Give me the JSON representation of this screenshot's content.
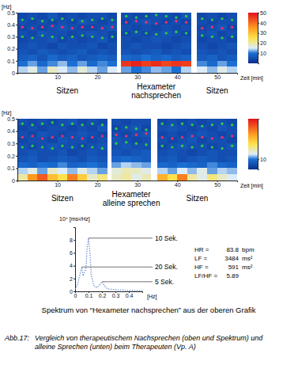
{
  "chart_data": [
    {
      "type": "heatmap",
      "y_label": "[Hz]",
      "x_label": "Zeit [min]",
      "xlim": [
        0,
        55
      ],
      "xticks": [
        10,
        20,
        30,
        40,
        50
      ],
      "ylim": [
        0,
        0.5
      ],
      "yticks": [
        0,
        0.1,
        0.2,
        0.3,
        0.4,
        0.5
      ],
      "x_edges": [
        0,
        2.5,
        5,
        7.5,
        10,
        12.5,
        15,
        17.5,
        20,
        22.5,
        25,
        26,
        28.5,
        31,
        33.5,
        36,
        38.5,
        41,
        43.5,
        45,
        47.5,
        50,
        52.5,
        55
      ],
      "y_edges": [
        0,
        0.05,
        0.1,
        0.15,
        0.2,
        0.25,
        0.3,
        0.35,
        0.4,
        0.45,
        0.5
      ],
      "z": [
        [
          14,
          16,
          12,
          18,
          15,
          13,
          17,
          14,
          12,
          15,
          null,
          12,
          10,
          11,
          13,
          12,
          10,
          14,
          null,
          15,
          13,
          16,
          14
        ],
        [
          10,
          12,
          9,
          11,
          13,
          10,
          12,
          9,
          11,
          10,
          null,
          46,
          48,
          45,
          47,
          44,
          46,
          45,
          null,
          11,
          9,
          12,
          10
        ],
        [
          7,
          8,
          6,
          9,
          7,
          8,
          6,
          7,
          8,
          7,
          null,
          9,
          8,
          10,
          8,
          9,
          7,
          8,
          null,
          7,
          8,
          6,
          7
        ],
        [
          6,
          5,
          7,
          6,
          5,
          6,
          7,
          5,
          6,
          5,
          null,
          6,
          5,
          6,
          7,
          5,
          6,
          5,
          null,
          6,
          5,
          6,
          5
        ],
        [
          5,
          6,
          5,
          4,
          6,
          5,
          5,
          6,
          4,
          5,
          null,
          5,
          6,
          5,
          5,
          4,
          5,
          6,
          null,
          5,
          4,
          5,
          6
        ],
        [
          4,
          5,
          5,
          6,
          4,
          5,
          4,
          5,
          6,
          4,
          null,
          5,
          4,
          5,
          6,
          5,
          4,
          5,
          null,
          4,
          5,
          5,
          4
        ],
        [
          5,
          4,
          6,
          5,
          5,
          4,
          5,
          6,
          5,
          4,
          null,
          4,
          5,
          4,
          5,
          6,
          5,
          4,
          null,
          5,
          6,
          4,
          5
        ],
        [
          4,
          5,
          4,
          5,
          6,
          5,
          4,
          4,
          5,
          6,
          null,
          5,
          4,
          5,
          4,
          5,
          4,
          5,
          null,
          4,
          5,
          6,
          4
        ],
        [
          5,
          4,
          5,
          4,
          5,
          4,
          6,
          5,
          4,
          5,
          null,
          4,
          5,
          6,
          5,
          4,
          5,
          4,
          null,
          5,
          4,
          5,
          5
        ],
        [
          4,
          5,
          4,
          6,
          4,
          5,
          4,
          5,
          5,
          4,
          null,
          5,
          4,
          4,
          5,
          5,
          4,
          6,
          null,
          4,
          5,
          4,
          5
        ]
      ],
      "colorbar": {
        "range": [
          0,
          50
        ],
        "ticks": [
          10,
          20,
          30,
          40,
          50
        ]
      },
      "dots": [
        {
          "color": "#2ecc40",
          "x": [
            1.25,
            3.75,
            6.25,
            8.75,
            11.25,
            13.75,
            16.25,
            18.75,
            21.25,
            23.75,
            27.25,
            29.75,
            32.25,
            34.75,
            37.25,
            39.75,
            42.25,
            46.25,
            48.75,
            51.25,
            53.75
          ],
          "y": [
            0.44,
            0.45,
            0.43,
            0.44,
            0.45,
            0.44,
            0.43,
            0.44,
            0.45,
            0.44,
            0.47,
            0.46,
            0.47,
            0.48,
            0.47,
            0.46,
            0.47,
            0.45,
            0.44,
            0.45,
            0.44
          ]
        },
        {
          "color": "#f0306a",
          "x": [
            1.25,
            3.75,
            6.25,
            8.75,
            11.25,
            13.75,
            16.25,
            18.75,
            21.25,
            23.75,
            27.25,
            29.75,
            32.25,
            34.75,
            37.25,
            39.75,
            42.25,
            46.25,
            48.75,
            51.25,
            53.75
          ],
          "y": [
            0.38,
            0.37,
            0.38,
            0.39,
            0.38,
            0.37,
            0.38,
            0.38,
            0.37,
            0.38,
            0.42,
            0.43,
            0.42,
            0.41,
            0.42,
            0.43,
            0.42,
            0.37,
            0.38,
            0.37,
            0.38
          ]
        },
        {
          "color": "#2ecc40",
          "x": [
            1.25,
            3.75,
            6.25,
            8.75,
            11.25,
            13.75,
            16.25,
            18.75,
            21.25,
            23.75,
            27.25,
            29.75,
            32.25,
            34.75,
            37.25,
            39.75,
            42.25,
            46.25,
            48.75,
            51.25,
            53.75
          ],
          "y": [
            0.3,
            0.29,
            0.31,
            0.3,
            0.29,
            0.3,
            0.31,
            0.3,
            0.29,
            0.3,
            0.33,
            0.34,
            0.33,
            0.32,
            0.33,
            0.34,
            0.33,
            0.31,
            0.3,
            0.29,
            0.3
          ]
        }
      ],
      "sections": [
        {
          "label": [
            "Sitzen"
          ],
          "start": 0,
          "end": 25
        },
        {
          "label": [
            "Hexameter",
            "nachsprechen"
          ],
          "start": 26,
          "end": 43.5
        },
        {
          "label": [
            "Sitzen"
          ],
          "start": 45,
          "end": 55
        }
      ]
    },
    {
      "type": "heatmap",
      "y_label": "[Hz]",
      "x_label": "Zeit [min]",
      "xlim": [
        0,
        55
      ],
      "xticks": [
        10,
        20,
        30,
        40,
        50
      ],
      "ylim": [
        0,
        0.5
      ],
      "yticks": [
        0,
        0.1,
        0.2,
        0.3,
        0.4,
        0.5
      ],
      "x_edges": [
        0,
        2.5,
        5,
        7.5,
        10,
        12.5,
        15,
        17.5,
        20,
        22.5,
        23.5,
        26,
        28.5,
        31,
        33.5,
        35,
        37.5,
        40,
        42.5,
        45,
        47.5,
        50,
        52.5,
        55
      ],
      "y_edges": [
        0,
        0.05,
        0.1,
        0.15,
        0.2,
        0.25,
        0.3,
        0.35,
        0.4,
        0.45,
        0.5
      ],
      "z": [
        [
          20,
          35,
          42,
          30,
          25,
          38,
          28,
          18,
          22,
          null,
          18,
          20,
          16,
          19,
          null,
          32,
          25,
          38,
          20,
          16,
          22,
          18,
          15
        ],
        [
          14,
          16,
          12,
          18,
          15,
          13,
          16,
          14,
          12,
          null,
          17,
          19,
          18,
          16,
          null,
          14,
          12,
          15,
          13,
          16,
          12,
          14,
          13
        ],
        [
          9,
          8,
          10,
          9,
          11,
          8,
          9,
          10,
          8,
          null,
          12,
          14,
          13,
          12,
          null,
          9,
          8,
          10,
          9,
          8,
          11,
          9,
          8
        ],
        [
          6,
          7,
          5,
          6,
          7,
          6,
          5,
          7,
          6,
          null,
          8,
          9,
          8,
          7,
          null,
          6,
          7,
          5,
          6,
          7,
          6,
          5,
          6
        ],
        [
          5,
          6,
          5,
          5,
          6,
          4,
          5,
          6,
          5,
          null,
          6,
          5,
          6,
          7,
          null,
          5,
          6,
          5,
          4,
          5,
          6,
          5,
          5
        ],
        [
          5,
          4,
          5,
          6,
          5,
          5,
          4,
          5,
          6,
          null,
          5,
          6,
          5,
          5,
          null,
          4,
          5,
          6,
          5,
          5,
          4,
          5,
          6
        ],
        [
          4,
          5,
          5,
          4,
          6,
          5,
          5,
          4,
          5,
          null,
          6,
          5,
          4,
          5,
          null,
          5,
          4,
          5,
          6,
          4,
          5,
          5,
          4
        ],
        [
          5,
          4,
          6,
          5,
          4,
          5,
          6,
          5,
          4,
          null,
          5,
          4,
          5,
          6,
          null,
          4,
          5,
          4,
          5,
          6,
          5,
          4,
          5
        ],
        [
          4,
          5,
          4,
          5,
          5,
          4,
          5,
          4,
          6,
          null,
          4,
          5,
          6,
          4,
          null,
          5,
          6,
          5,
          4,
          5,
          4,
          6,
          5
        ],
        [
          5,
          4,
          5,
          4,
          5,
          6,
          4,
          5,
          4,
          null,
          5,
          4,
          5,
          5,
          null,
          4,
          5,
          4,
          5,
          4,
          5,
          5,
          4
        ]
      ],
      "colorbar": {
        "range": [
          0,
          50
        ],
        "ticks": [
          10
        ]
      },
      "dots": [
        {
          "color": "#2ecc40",
          "x": [
            1.25,
            3.75,
            6.25,
            8.75,
            11.25,
            13.75,
            16.25,
            18.75,
            21.25,
            24.75,
            27.25,
            29.75,
            32.25,
            36.25,
            38.75,
            41.25,
            43.75,
            46.25,
            48.75,
            51.25,
            53.75
          ],
          "y": [
            0.46,
            0.45,
            0.46,
            0.47,
            0.45,
            0.46,
            0.45,
            0.46,
            0.45,
            0.42,
            0.43,
            0.42,
            0.41,
            0.46,
            0.45,
            0.46,
            0.45,
            0.44,
            0.45,
            0.46,
            0.45
          ]
        },
        {
          "color": "#f0306a",
          "x": [
            1.25,
            3.75,
            6.25,
            8.75,
            11.25,
            13.75,
            16.25,
            18.75,
            21.25,
            24.75,
            27.25,
            29.75,
            32.25,
            36.25,
            38.75,
            41.25,
            43.75,
            46.25,
            48.75,
            51.25,
            53.75
          ],
          "y": [
            0.35,
            0.36,
            0.34,
            0.35,
            0.36,
            0.35,
            0.34,
            0.35,
            0.36,
            0.37,
            0.36,
            0.37,
            0.38,
            0.35,
            0.34,
            0.35,
            0.36,
            0.35,
            0.34,
            0.35,
            0.36
          ]
        },
        {
          "color": "#2ecc40",
          "x": [
            1.25,
            3.75,
            6.25,
            8.75,
            11.25,
            13.75,
            16.25,
            18.75,
            21.25,
            24.75,
            27.25,
            29.75,
            32.25,
            36.25,
            38.75,
            41.25,
            43.75,
            46.25,
            48.75,
            51.25,
            53.75
          ],
          "y": [
            0.27,
            0.28,
            0.27,
            0.26,
            0.28,
            0.27,
            0.28,
            0.27,
            0.26,
            0.3,
            0.31,
            0.3,
            0.29,
            0.28,
            0.27,
            0.28,
            0.27,
            0.28,
            0.27,
            0.26,
            0.28
          ]
        }
      ],
      "sections": [
        {
          "label": [
            "Sitzen"
          ],
          "start": 0,
          "end": 22.5
        },
        {
          "label": [
            "Hexameter",
            "alleine sprechen"
          ],
          "start": 23.5,
          "end": 33.5
        },
        {
          "label": [
            "Sitzen"
          ],
          "start": 35,
          "end": 55
        }
      ]
    },
    {
      "type": "line",
      "title": "Spektrum von “Hexameter nachsprechen” aus der oberen Grafik",
      "y_label": "10⁴ [ms²/Hz]",
      "x_label": "[Hz]",
      "xlim": [
        0,
        0.5
      ],
      "xticks": [
        0,
        0.1,
        0.2,
        0.3,
        0.4
      ],
      "ylim": [
        0,
        10
      ],
      "yticks": [
        0,
        2,
        4,
        6,
        8
      ],
      "x": [
        0,
        0.02,
        0.04,
        0.05,
        0.06,
        0.08,
        0.09,
        0.1,
        0.11,
        0.12,
        0.14,
        0.16,
        0.18,
        0.2,
        0.22,
        0.24,
        0.28,
        0.32,
        0.36,
        0.4,
        0.45,
        0.5
      ],
      "series": [
        {
          "color": "#6b8fd0",
          "line_style": "dotted",
          "values": [
            0.3,
            1.2,
            3.0,
            3.8,
            2.4,
            3.5,
            6.8,
            8.3,
            6.2,
            2.5,
            0.9,
            0.6,
            0.9,
            1.5,
            0.8,
            0.4,
            0.3,
            0.2,
            0.2,
            0.15,
            0.1,
            0.1
          ]
        }
      ],
      "annotations": [
        {
          "text": "10 Sek.",
          "x": 0.1,
          "y": 8.3
        },
        {
          "text": "20 Sek.",
          "x": 0.05,
          "y": 3.8
        },
        {
          "text": "5 Sek.",
          "x": 0.2,
          "y": 1.5
        }
      ],
      "stats": [
        {
          "label": "HR =",
          "value": 83.8,
          "unit": "bpm"
        },
        {
          "label": "LF =",
          "value": 3484,
          "unit": "ms²"
        },
        {
          "label": "HF =",
          "value": 591,
          "unit": "ms²"
        },
        {
          "label": "LF/HF =",
          "value": 5.89
        }
      ]
    }
  ],
  "caption": {
    "label": "Abb.17:",
    "text": [
      "Vergleich von therapeutischem Nachsprechen (oben und Spektrum) und",
      "alleine Sprechen (unten) beim Therapeuten (Vp. A)"
    ]
  }
}
